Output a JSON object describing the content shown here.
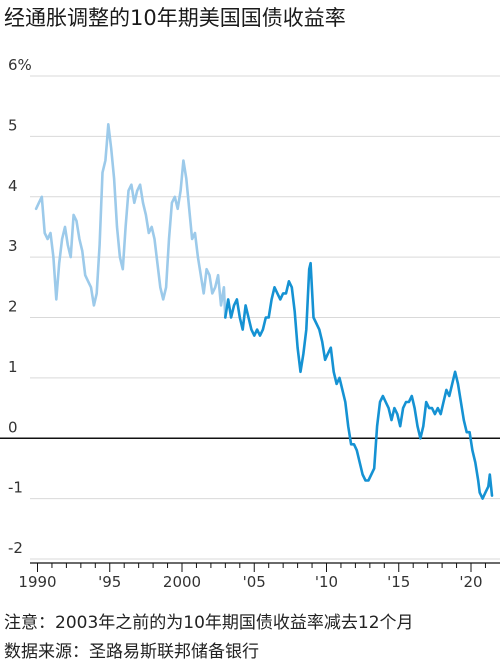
{
  "title": "经通胀调整的10年期美国国债收益率",
  "note": "注意：2003年之前的为10年期国债收益率减去12个月",
  "source": "数据来源：圣路易斯联邦储备银行",
  "chart_data": {
    "type": "line",
    "title": "经通胀调整的10年期美国国债收益率",
    "xlabel": "",
    "ylabel": "",
    "xlim": [
      1989.5,
      2021.6
    ],
    "ylim": [
      -2,
      6
    ],
    "y_ticks": [
      {
        "value": 6,
        "label": "6%"
      },
      {
        "value": 5,
        "label": "5"
      },
      {
        "value": 4,
        "label": "4"
      },
      {
        "value": 3,
        "label": "3"
      },
      {
        "value": 2,
        "label": "2"
      },
      {
        "value": 1,
        "label": "1"
      },
      {
        "value": 0,
        "label": "0"
      },
      {
        "value": -1,
        "label": "-1"
      },
      {
        "value": -2,
        "label": "-2"
      }
    ],
    "x_ticks": [
      {
        "value": 1990,
        "label": "1990"
      },
      {
        "value": 1995,
        "label": "'95"
      },
      {
        "value": 2000,
        "label": "2000"
      },
      {
        "value": 2005,
        "label": "'05"
      },
      {
        "value": 2010,
        "label": "'10"
      },
      {
        "value": 2015,
        "label": "'15"
      },
      {
        "value": 2020,
        "label": "'20"
      }
    ],
    "grid": true,
    "series": [
      {
        "color": "#9ccaea",
        "points": [
          [
            1989.9,
            3.8
          ],
          [
            1990.1,
            3.9
          ],
          [
            1990.3,
            4.0
          ],
          [
            1990.5,
            3.4
          ],
          [
            1990.7,
            3.3
          ],
          [
            1990.9,
            3.4
          ],
          [
            1991.1,
            3.0
          ],
          [
            1991.3,
            2.3
          ],
          [
            1991.5,
            2.9
          ],
          [
            1991.7,
            3.3
          ],
          [
            1991.9,
            3.5
          ],
          [
            1992.1,
            3.2
          ],
          [
            1992.3,
            3.0
          ],
          [
            1992.5,
            3.7
          ],
          [
            1992.7,
            3.6
          ],
          [
            1992.9,
            3.3
          ],
          [
            1993.1,
            3.1
          ],
          [
            1993.3,
            2.7
          ],
          [
            1993.5,
            2.6
          ],
          [
            1993.7,
            2.5
          ],
          [
            1993.9,
            2.2
          ],
          [
            1994.1,
            2.4
          ],
          [
            1994.3,
            3.2
          ],
          [
            1994.5,
            4.4
          ],
          [
            1994.7,
            4.6
          ],
          [
            1994.8,
            4.9
          ],
          [
            1994.9,
            5.2
          ],
          [
            1995.1,
            4.8
          ],
          [
            1995.3,
            4.3
          ],
          [
            1995.5,
            3.5
          ],
          [
            1995.7,
            3.0
          ],
          [
            1995.9,
            2.8
          ],
          [
            1996.1,
            3.5
          ],
          [
            1996.3,
            4.1
          ],
          [
            1996.5,
            4.2
          ],
          [
            1996.7,
            3.9
          ],
          [
            1996.9,
            4.1
          ],
          [
            1997.1,
            4.2
          ],
          [
            1997.3,
            3.9
          ],
          [
            1997.5,
            3.7
          ],
          [
            1997.7,
            3.4
          ],
          [
            1997.9,
            3.5
          ],
          [
            1998.1,
            3.3
          ],
          [
            1998.3,
            2.9
          ],
          [
            1998.5,
            2.5
          ],
          [
            1998.7,
            2.3
          ],
          [
            1998.9,
            2.5
          ],
          [
            1999.1,
            3.3
          ],
          [
            1999.3,
            3.9
          ],
          [
            1999.5,
            4.0
          ],
          [
            1999.7,
            3.8
          ],
          [
            1999.9,
            4.1
          ],
          [
            2000.1,
            4.6
          ],
          [
            2000.3,
            4.3
          ],
          [
            2000.5,
            3.8
          ],
          [
            2000.7,
            3.3
          ],
          [
            2000.9,
            3.4
          ],
          [
            2001.1,
            3.0
          ],
          [
            2001.3,
            2.7
          ],
          [
            2001.5,
            2.4
          ],
          [
            2001.7,
            2.8
          ],
          [
            2001.9,
            2.7
          ],
          [
            2002.1,
            2.4
          ],
          [
            2002.3,
            2.5
          ],
          [
            2002.5,
            2.7
          ],
          [
            2002.7,
            2.2
          ],
          [
            2002.9,
            2.5
          ],
          [
            2003.0,
            2.0
          ]
        ]
      },
      {
        "color": "#1592d3",
        "points": [
          [
            2003.0,
            2.0
          ],
          [
            2003.2,
            2.3
          ],
          [
            2003.4,
            2.0
          ],
          [
            2003.6,
            2.2
          ],
          [
            2003.8,
            2.3
          ],
          [
            2004.0,
            2.0
          ],
          [
            2004.2,
            1.8
          ],
          [
            2004.4,
            2.2
          ],
          [
            2004.6,
            2.0
          ],
          [
            2004.8,
            1.8
          ],
          [
            2005.0,
            1.7
          ],
          [
            2005.2,
            1.8
          ],
          [
            2005.4,
            1.7
          ],
          [
            2005.6,
            1.8
          ],
          [
            2005.8,
            2.0
          ],
          [
            2006.0,
            2.0
          ],
          [
            2006.2,
            2.3
          ],
          [
            2006.4,
            2.5
          ],
          [
            2006.6,
            2.4
          ],
          [
            2006.8,
            2.3
          ],
          [
            2007.0,
            2.4
          ],
          [
            2007.2,
            2.4
          ],
          [
            2007.4,
            2.6
          ],
          [
            2007.6,
            2.5
          ],
          [
            2007.8,
            2.1
          ],
          [
            2008.0,
            1.5
          ],
          [
            2008.2,
            1.1
          ],
          [
            2008.4,
            1.4
          ],
          [
            2008.6,
            1.8
          ],
          [
            2008.8,
            2.8
          ],
          [
            2008.9,
            2.9
          ],
          [
            2009.1,
            2.0
          ],
          [
            2009.3,
            1.9
          ],
          [
            2009.5,
            1.8
          ],
          [
            2009.7,
            1.6
          ],
          [
            2009.9,
            1.3
          ],
          [
            2010.1,
            1.4
          ],
          [
            2010.3,
            1.5
          ],
          [
            2010.5,
            1.1
          ],
          [
            2010.7,
            0.9
          ],
          [
            2010.9,
            1.0
          ],
          [
            2011.1,
            0.8
          ],
          [
            2011.3,
            0.6
          ],
          [
            2011.5,
            0.2
          ],
          [
            2011.7,
            -0.1
          ],
          [
            2011.9,
            -0.1
          ],
          [
            2012.1,
            -0.2
          ],
          [
            2012.3,
            -0.4
          ],
          [
            2012.5,
            -0.6
          ],
          [
            2012.7,
            -0.7
          ],
          [
            2012.9,
            -0.7
          ],
          [
            2013.1,
            -0.6
          ],
          [
            2013.3,
            -0.5
          ],
          [
            2013.5,
            0.2
          ],
          [
            2013.7,
            0.6
          ],
          [
            2013.9,
            0.7
          ],
          [
            2014.1,
            0.6
          ],
          [
            2014.3,
            0.5
          ],
          [
            2014.5,
            0.3
          ],
          [
            2014.7,
            0.5
          ],
          [
            2014.9,
            0.4
          ],
          [
            2015.1,
            0.2
          ],
          [
            2015.3,
            0.5
          ],
          [
            2015.5,
            0.6
          ],
          [
            2015.7,
            0.6
          ],
          [
            2015.9,
            0.7
          ],
          [
            2016.1,
            0.5
          ],
          [
            2016.3,
            0.2
          ],
          [
            2016.5,
            0.0
          ],
          [
            2016.7,
            0.2
          ],
          [
            2016.9,
            0.6
          ],
          [
            2017.1,
            0.5
          ],
          [
            2017.3,
            0.5
          ],
          [
            2017.5,
            0.4
          ],
          [
            2017.7,
            0.5
          ],
          [
            2017.9,
            0.4
          ],
          [
            2018.1,
            0.6
          ],
          [
            2018.3,
            0.8
          ],
          [
            2018.5,
            0.7
          ],
          [
            2018.7,
            0.9
          ],
          [
            2018.9,
            1.1
          ],
          [
            2019.1,
            0.9
          ],
          [
            2019.3,
            0.6
          ],
          [
            2019.5,
            0.3
          ],
          [
            2019.7,
            0.1
          ],
          [
            2019.9,
            0.1
          ],
          [
            2020.1,
            -0.2
          ],
          [
            2020.3,
            -0.4
          ],
          [
            2020.5,
            -0.7
          ],
          [
            2020.6,
            -0.9
          ],
          [
            2020.8,
            -1.0
          ],
          [
            2021.0,
            -0.9
          ],
          [
            2021.2,
            -0.8
          ],
          [
            2021.3,
            -0.6
          ],
          [
            2021.45,
            -0.95
          ]
        ]
      }
    ]
  }
}
